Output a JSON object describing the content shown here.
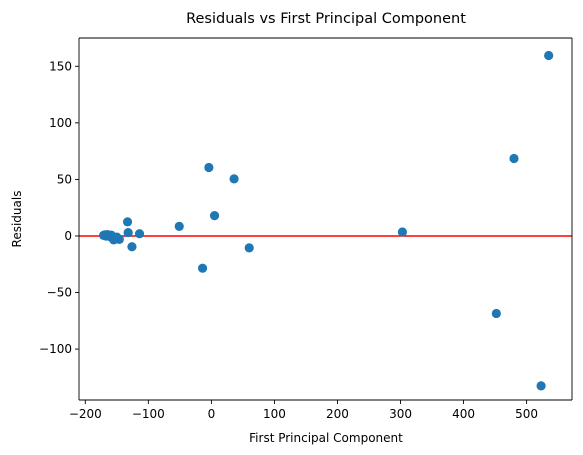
{
  "chart_data": {
    "type": "scatter",
    "title": "Residuals vs First Principal Component",
    "xlabel": "First Principal Component",
    "ylabel": "Residuals",
    "xlim": [
      -210,
      572
    ],
    "ylim": [
      -145,
      175
    ],
    "xticks": [
      -200,
      -100,
      0,
      100,
      200,
      300,
      400,
      500
    ],
    "yticks": [
      -100,
      -50,
      0,
      50,
      100,
      150
    ],
    "grid": false,
    "point_color": "#1f77b4",
    "reference_line": {
      "y": 0,
      "color": "#ff0000"
    },
    "points": [
      {
        "x": -171,
        "y": 0.5
      },
      {
        "x": -169,
        "y": 1.0
      },
      {
        "x": -167,
        "y": 0.0
      },
      {
        "x": -165,
        "y": 1.2
      },
      {
        "x": -163,
        "y": 0.3
      },
      {
        "x": -161,
        "y": -0.5
      },
      {
        "x": -159,
        "y": 0.8
      },
      {
        "x": -157,
        "y": -1.5
      },
      {
        "x": -155,
        "y": -3.5
      },
      {
        "x": -152,
        "y": -2.0
      },
      {
        "x": -150,
        "y": -1.0
      },
      {
        "x": -146,
        "y": -3.0
      },
      {
        "x": -133,
        "y": 12.5
      },
      {
        "x": -132,
        "y": 3.0
      },
      {
        "x": -126,
        "y": -9.5
      },
      {
        "x": -114,
        "y": 2.0
      },
      {
        "x": -51,
        "y": 8.5
      },
      {
        "x": -14,
        "y": -28.5
      },
      {
        "x": -4,
        "y": 60.5
      },
      {
        "x": 5,
        "y": 18.0
      },
      {
        "x": 36,
        "y": 50.5
      },
      {
        "x": 60,
        "y": -10.5
      },
      {
        "x": 303,
        "y": 3.5
      },
      {
        "x": 452,
        "y": -68.5
      },
      {
        "x": 480,
        "y": 68.5
      },
      {
        "x": 523,
        "y": -132.5
      },
      {
        "x": 535,
        "y": 159.5
      }
    ]
  }
}
